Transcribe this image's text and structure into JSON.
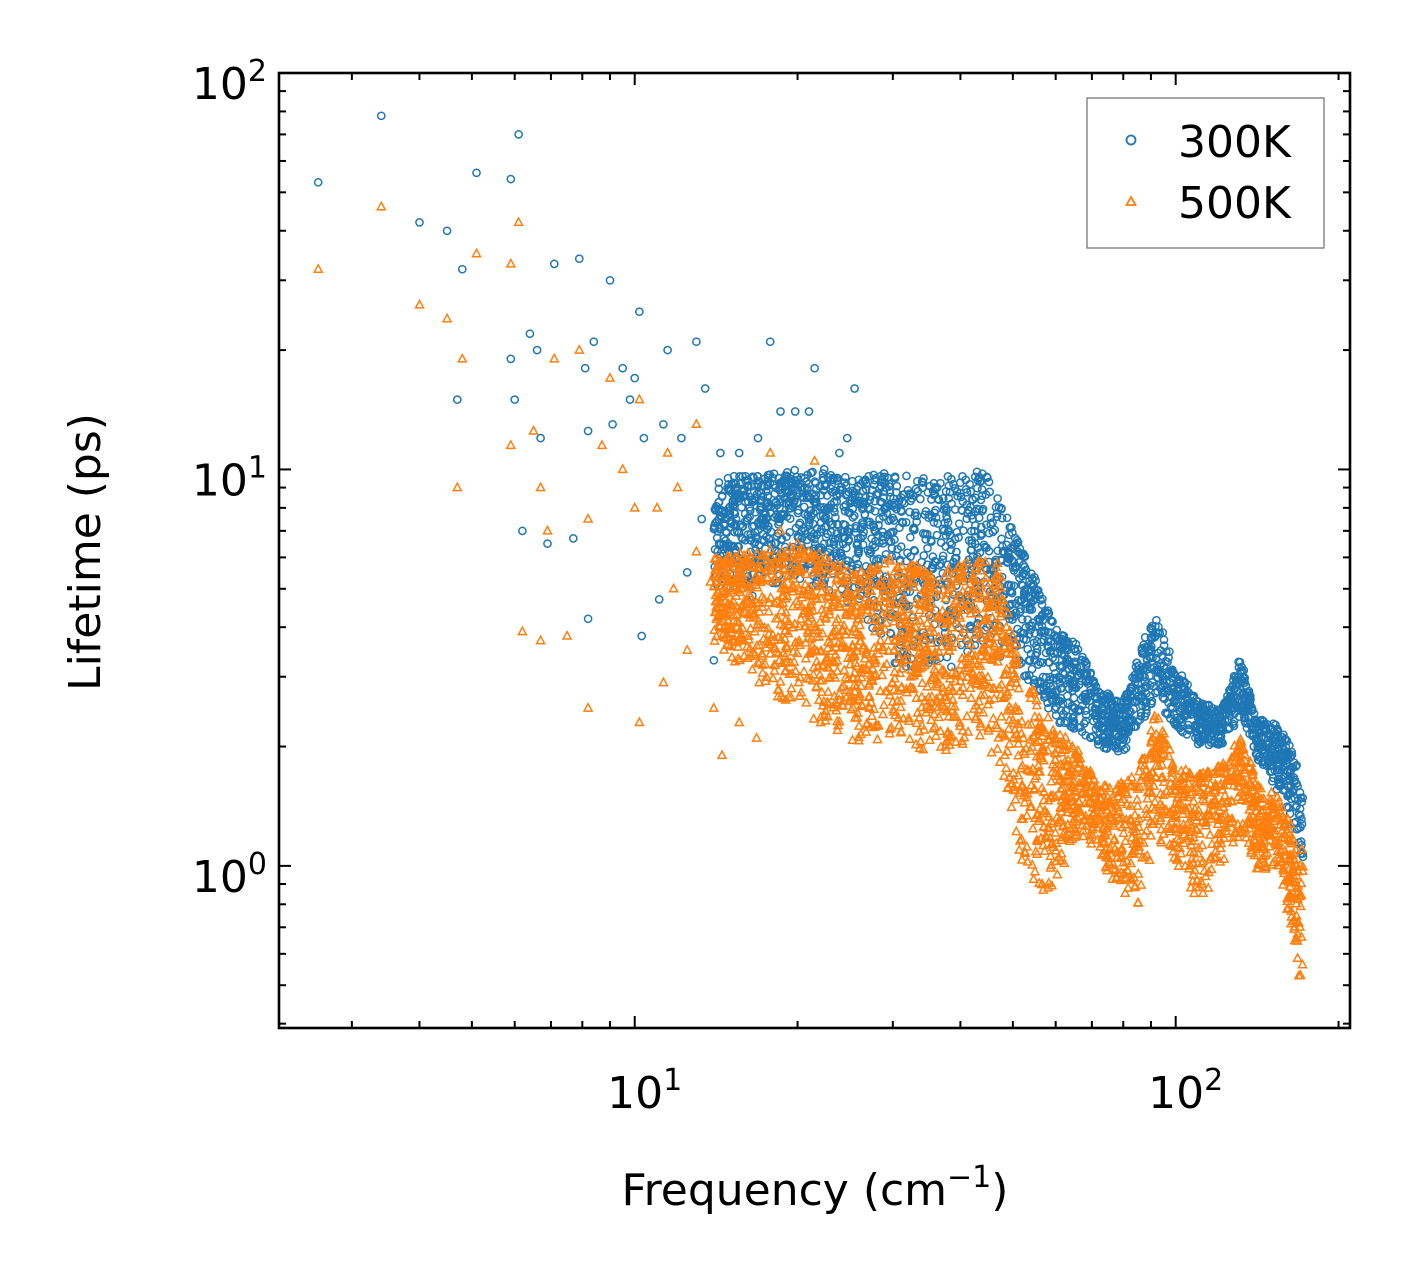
{
  "chart_data": {
    "type": "scatter",
    "xscale": "log",
    "yscale": "log",
    "xlim": [
      2.2,
      210
    ],
    "ylim": [
      0.39,
      100
    ],
    "xlabel": "Frequency (cm",
    "xlabel_sup": "−1",
    "xlabel_end": ")",
    "ylabel": "Lifetime (ps)",
    "xticks": [
      {
        "value": 10,
        "base": "10",
        "exp": "1"
      },
      {
        "value": 100,
        "base": "10",
        "exp": "2"
      }
    ],
    "yticks": [
      {
        "value": 1,
        "base": "10",
        "exp": "0"
      },
      {
        "value": 10,
        "base": "10",
        "exp": "1"
      },
      {
        "value": 100,
        "base": "10",
        "exp": "2"
      }
    ],
    "legend": {
      "position": "top-right"
    },
    "series": [
      {
        "name": "300K",
        "marker": "circle",
        "color": "#1f77b4",
        "points": [
          [
            2.6,
            53
          ],
          [
            3.4,
            78
          ],
          [
            4.0,
            42
          ],
          [
            4.5,
            40
          ],
          [
            4.8,
            32
          ],
          [
            5.1,
            56
          ],
          [
            5.9,
            54
          ],
          [
            6.1,
            70
          ],
          [
            7.1,
            33
          ],
          [
            7.9,
            34
          ],
          [
            9.0,
            30
          ],
          [
            10.2,
            25
          ],
          [
            11.5,
            20
          ],
          [
            13.0,
            21
          ],
          [
            17.8,
            21
          ],
          [
            21.5,
            18
          ],
          [
            25.5,
            16
          ],
          [
            6.4,
            22
          ],
          [
            6.6,
            20
          ],
          [
            5.9,
            19
          ],
          [
            8.4,
            21
          ],
          [
            8.1,
            18
          ],
          [
            9.5,
            18
          ],
          [
            10.0,
            17
          ],
          [
            4.7,
            15
          ],
          [
            6.0,
            15
          ],
          [
            6.7,
            12
          ],
          [
            8.2,
            12.5
          ],
          [
            9.1,
            13
          ],
          [
            9.8,
            15
          ],
          [
            10.4,
            12
          ],
          [
            11.3,
            13
          ],
          [
            12.2,
            12
          ],
          [
            13.5,
            16
          ],
          [
            14.4,
            11
          ],
          [
            15.6,
            11
          ],
          [
            16.9,
            12
          ],
          [
            18.6,
            14
          ],
          [
            19.8,
            14
          ],
          [
            21.0,
            14
          ],
          [
            22.4,
            10
          ],
          [
            23.9,
            11
          ],
          [
            24.7,
            12
          ],
          [
            6.2,
            7.0
          ],
          [
            6.9,
            6.5
          ],
          [
            7.7,
            6.7
          ],
          [
            10.3,
            3.8
          ],
          [
            8.2,
            4.2
          ],
          [
            11.1,
            4.7
          ],
          [
            14.0,
            3.3
          ],
          [
            12.5,
            5.5
          ],
          [
            13.3,
            7.5
          ],
          [
            15.0,
            5.2
          ],
          [
            16.5,
            4.8
          ],
          [
            17.5,
            8.8
          ],
          [
            19.0,
            6.0
          ],
          [
            20.5,
            7.1
          ]
        ],
        "envelope": [
          {
            "x": 14,
            "lo": 5.0,
            "hi": 9.5
          },
          {
            "x": 20,
            "lo": 5.2,
            "hi": 10.0
          },
          {
            "x": 26,
            "lo": 4.5,
            "hi": 9.5
          },
          {
            "x": 30,
            "lo": 3.2,
            "hi": 10.0
          },
          {
            "x": 36,
            "lo": 3.0,
            "hi": 9.5
          },
          {
            "x": 45,
            "lo": 3.5,
            "hi": 10.0
          },
          {
            "x": 50,
            "lo": 3.2,
            "hi": 7.0
          },
          {
            "x": 55,
            "lo": 2.8,
            "hi": 5.3
          },
          {
            "x": 60,
            "lo": 2.3,
            "hi": 4.0
          },
          {
            "x": 66,
            "lo": 2.2,
            "hi": 3.6
          },
          {
            "x": 72,
            "lo": 2.0,
            "hi": 2.8
          },
          {
            "x": 80,
            "lo": 1.9,
            "hi": 2.6
          },
          {
            "x": 88,
            "lo": 2.4,
            "hi": 3.8
          },
          {
            "x": 92,
            "lo": 2.6,
            "hi": 4.3
          },
          {
            "x": 100,
            "lo": 2.2,
            "hi": 3.2
          },
          {
            "x": 110,
            "lo": 2.0,
            "hi": 2.6
          },
          {
            "x": 122,
            "lo": 2.0,
            "hi": 2.5
          },
          {
            "x": 132,
            "lo": 2.4,
            "hi": 3.4
          },
          {
            "x": 140,
            "lo": 1.9,
            "hi": 2.4
          },
          {
            "x": 152,
            "lo": 1.6,
            "hi": 2.3
          },
          {
            "x": 165,
            "lo": 1.3,
            "hi": 2.0
          },
          {
            "x": 172,
            "lo": 0.95,
            "hi": 1.5
          }
        ]
      },
      {
        "name": "500K",
        "marker": "triangle",
        "color": "#ff7f0e",
        "points": [
          [
            2.6,
            32
          ],
          [
            3.4,
            46
          ],
          [
            4.0,
            26
          ],
          [
            4.5,
            24
          ],
          [
            4.8,
            19
          ],
          [
            5.1,
            35
          ],
          [
            5.9,
            33
          ],
          [
            6.1,
            42
          ],
          [
            7.1,
            19
          ],
          [
            7.9,
            20
          ],
          [
            9.0,
            17
          ],
          [
            10.2,
            15
          ],
          [
            11.5,
            11
          ],
          [
            13.0,
            13
          ],
          [
            17.8,
            11
          ],
          [
            21.5,
            10.5
          ],
          [
            4.7,
            9.0
          ],
          [
            5.9,
            11.5
          ],
          [
            6.7,
            9.0
          ],
          [
            6.9,
            7.0
          ],
          [
            6.5,
            12.5
          ],
          [
            8.2,
            7.5
          ],
          [
            8.7,
            11.5
          ],
          [
            9.5,
            10
          ],
          [
            10.0,
            8.0
          ],
          [
            11.0,
            8.0
          ],
          [
            12.0,
            9.0
          ],
          [
            6.2,
            3.9
          ],
          [
            6.7,
            3.7
          ],
          [
            7.5,
            3.8
          ],
          [
            8.2,
            2.5
          ],
          [
            10.2,
            2.3
          ],
          [
            11.3,
            2.9
          ],
          [
            12.5,
            3.5
          ],
          [
            14.0,
            2.5
          ],
          [
            15.6,
            2.3
          ],
          [
            16.8,
            2.1
          ],
          [
            14.5,
            1.9
          ],
          [
            11.8,
            5.0
          ],
          [
            13.0,
            6.2
          ],
          [
            13.8,
            5.2
          ],
          [
            15.0,
            4.0
          ],
          [
            17.0,
            3.6
          ],
          [
            18.6,
            7.0
          ],
          [
            20.0,
            6.5
          ],
          [
            22.5,
            6.0
          ]
        ],
        "envelope": [
          {
            "x": 14,
            "lo": 3.6,
            "hi": 6.0
          },
          {
            "x": 20,
            "lo": 2.4,
            "hi": 6.5
          },
          {
            "x": 26,
            "lo": 2.0,
            "hi": 5.5
          },
          {
            "x": 30,
            "lo": 2.1,
            "hi": 6.0
          },
          {
            "x": 36,
            "lo": 1.9,
            "hi": 5.5
          },
          {
            "x": 42,
            "lo": 2.0,
            "hi": 6.0
          },
          {
            "x": 47,
            "lo": 1.8,
            "hi": 5.8
          },
          {
            "x": 52,
            "lo": 1.0,
            "hi": 3.2
          },
          {
            "x": 56,
            "lo": 0.8,
            "hi": 2.6
          },
          {
            "x": 60,
            "lo": 0.9,
            "hi": 2.2
          },
          {
            "x": 66,
            "lo": 1.2,
            "hi": 2.0
          },
          {
            "x": 72,
            "lo": 1.1,
            "hi": 1.6
          },
          {
            "x": 78,
            "lo": 0.8,
            "hi": 1.6
          },
          {
            "x": 86,
            "lo": 0.8,
            "hi": 1.8
          },
          {
            "x": 92,
            "lo": 1.2,
            "hi": 2.5
          },
          {
            "x": 100,
            "lo": 1.0,
            "hi": 1.8
          },
          {
            "x": 110,
            "lo": 0.8,
            "hi": 1.7
          },
          {
            "x": 122,
            "lo": 1.0,
            "hi": 1.8
          },
          {
            "x": 132,
            "lo": 1.2,
            "hi": 2.2
          },
          {
            "x": 142,
            "lo": 0.95,
            "hi": 1.6
          },
          {
            "x": 155,
            "lo": 1.0,
            "hi": 1.5
          },
          {
            "x": 166,
            "lo": 0.6,
            "hi": 1.2
          },
          {
            "x": 172,
            "lo": 0.45,
            "hi": 1.1
          }
        ]
      }
    ]
  }
}
